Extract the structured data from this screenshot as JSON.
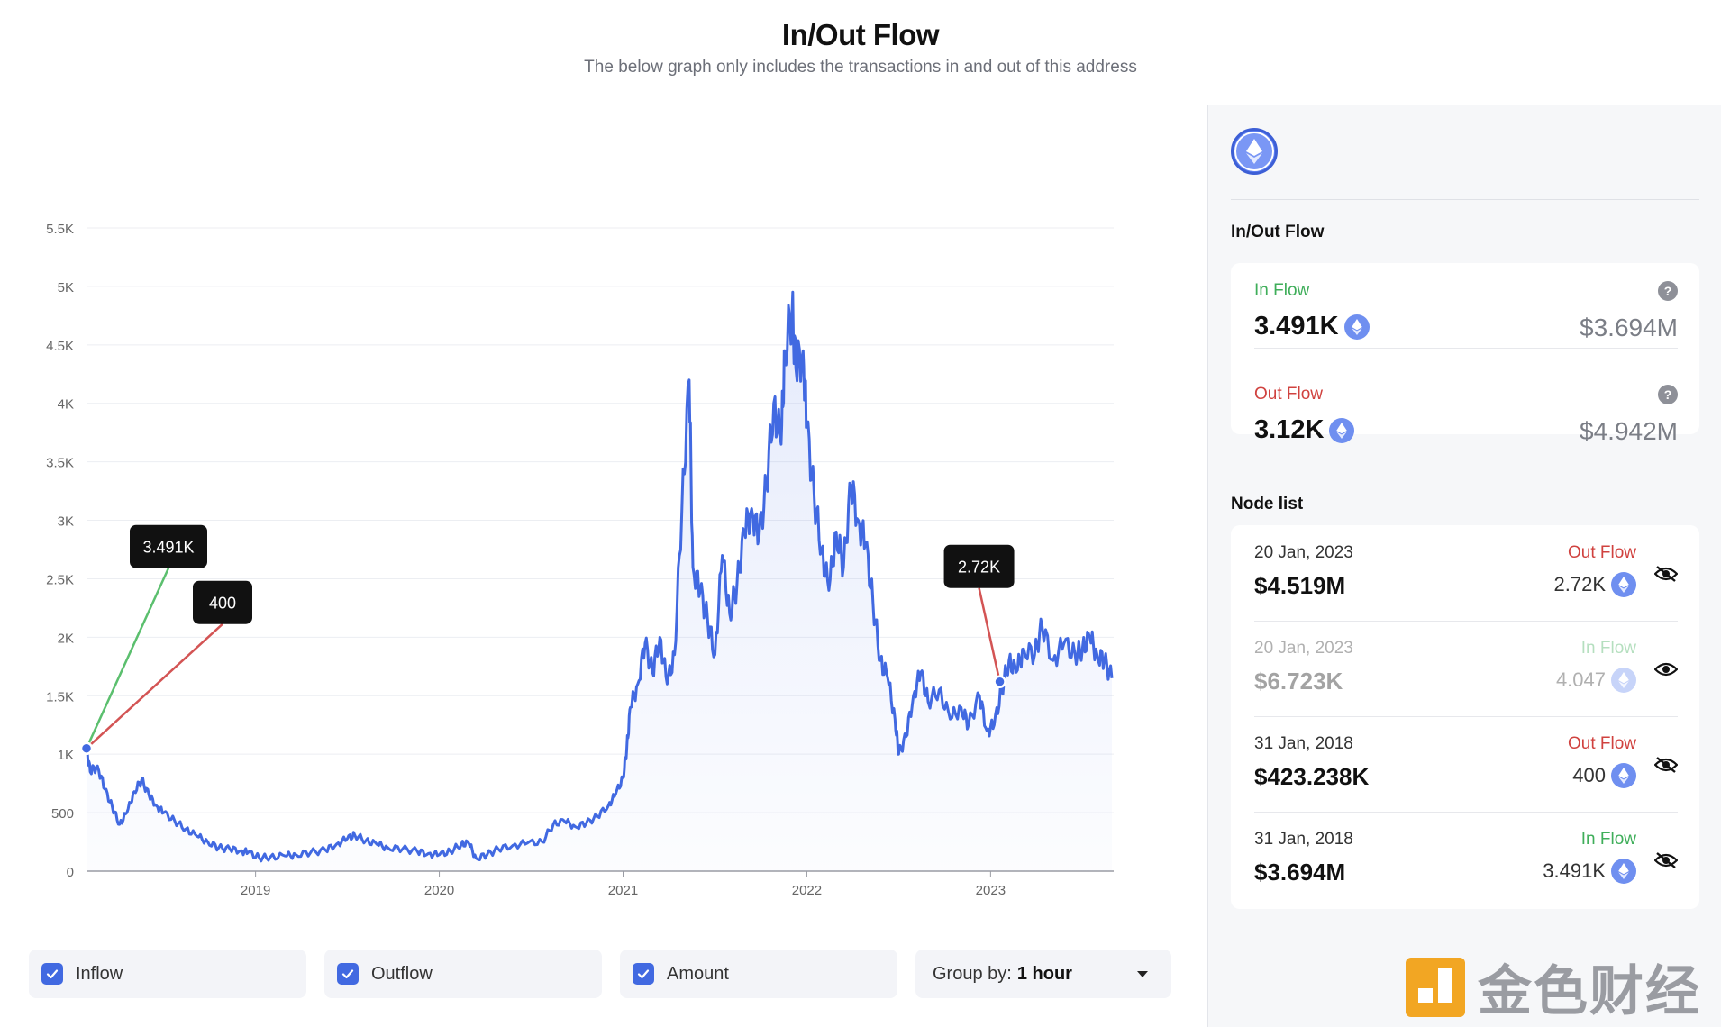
{
  "header": {
    "title": "In/Out Flow",
    "subtitle": "The below graph only includes the transactions in and out of this address"
  },
  "chart_data": {
    "type": "area",
    "ylim": [
      0,
      5500
    ],
    "yticks": [
      "0",
      "500",
      "1K",
      "1.5K",
      "2K",
      "2.5K",
      "3K",
      "3.5K",
      "4K",
      "4.5K",
      "5K",
      "5.5K"
    ],
    "xlim": [
      2018.08,
      2023.67
    ],
    "xticks": [
      {
        "label": "2019",
        "x": 2019
      },
      {
        "label": "2020",
        "x": 2020
      },
      {
        "label": "2021",
        "x": 2021
      },
      {
        "label": "2022",
        "x": 2022
      },
      {
        "label": "2023",
        "x": 2023
      }
    ],
    "series": [
      {
        "color": "#4169e1",
        "points": [
          [
            2018.08,
            1050
          ],
          [
            2018.1,
            850
          ],
          [
            2018.14,
            900
          ],
          [
            2018.18,
            700
          ],
          [
            2018.22,
            550
          ],
          [
            2018.26,
            400
          ],
          [
            2018.3,
            500
          ],
          [
            2018.34,
            680
          ],
          [
            2018.38,
            780
          ],
          [
            2018.42,
            650
          ],
          [
            2018.46,
            560
          ],
          [
            2018.5,
            500
          ],
          [
            2018.56,
            430
          ],
          [
            2018.62,
            360
          ],
          [
            2018.68,
            300
          ],
          [
            2018.74,
            250
          ],
          [
            2018.8,
            200
          ],
          [
            2018.86,
            190
          ],
          [
            2018.92,
            175
          ],
          [
            2018.96,
            160
          ],
          [
            2019.02,
            115
          ],
          [
            2019.08,
            120
          ],
          [
            2019.16,
            130
          ],
          [
            2019.22,
            140
          ],
          [
            2019.3,
            160
          ],
          [
            2019.38,
            180
          ],
          [
            2019.44,
            230
          ],
          [
            2019.5,
            280
          ],
          [
            2019.54,
            310
          ],
          [
            2019.6,
            260
          ],
          [
            2019.66,
            230
          ],
          [
            2019.72,
            200
          ],
          [
            2019.8,
            190
          ],
          [
            2019.88,
            170
          ],
          [
            2019.94,
            150
          ],
          [
            2020.0,
            140
          ],
          [
            2020.06,
            170
          ],
          [
            2020.12,
            230
          ],
          [
            2020.16,
            240
          ],
          [
            2020.2,
            110
          ],
          [
            2020.26,
            140
          ],
          [
            2020.32,
            190
          ],
          [
            2020.4,
            220
          ],
          [
            2020.48,
            240
          ],
          [
            2020.56,
            250
          ],
          [
            2020.62,
            400
          ],
          [
            2020.68,
            430
          ],
          [
            2020.74,
            380
          ],
          [
            2020.8,
            410
          ],
          [
            2020.86,
            470
          ],
          [
            2020.92,
            560
          ],
          [
            2020.96,
            660
          ],
          [
            2021.0,
            800
          ],
          [
            2021.02,
            1050
          ],
          [
            2021.04,
            1400
          ],
          [
            2021.08,
            1600
          ],
          [
            2021.12,
            1950
          ],
          [
            2021.16,
            1700
          ],
          [
            2021.2,
            2000
          ],
          [
            2021.24,
            1600
          ],
          [
            2021.28,
            1850
          ],
          [
            2021.32,
            3100
          ],
          [
            2021.36,
            4200
          ],
          [
            2021.38,
            2600
          ],
          [
            2021.42,
            2400
          ],
          [
            2021.46,
            2150
          ],
          [
            2021.5,
            1850
          ],
          [
            2021.54,
            2700
          ],
          [
            2021.58,
            2200
          ],
          [
            2021.62,
            2450
          ],
          [
            2021.66,
            2900
          ],
          [
            2021.7,
            3100
          ],
          [
            2021.74,
            2850
          ],
          [
            2021.78,
            3300
          ],
          [
            2021.82,
            4000
          ],
          [
            2021.86,
            3650
          ],
          [
            2021.88,
            4450
          ],
          [
            2021.92,
            4800
          ],
          [
            2021.94,
            4300
          ],
          [
            2021.98,
            4450
          ],
          [
            2022.0,
            3800
          ],
          [
            2022.04,
            3200
          ],
          [
            2022.08,
            2750
          ],
          [
            2022.12,
            2400
          ],
          [
            2022.16,
            2900
          ],
          [
            2022.2,
            2600
          ],
          [
            2022.24,
            3300
          ],
          [
            2022.28,
            3000
          ],
          [
            2022.32,
            2800
          ],
          [
            2022.36,
            2300
          ],
          [
            2022.4,
            1800
          ],
          [
            2022.44,
            1650
          ],
          [
            2022.48,
            1300
          ],
          [
            2022.5,
            1000
          ],
          [
            2022.54,
            1150
          ],
          [
            2022.58,
            1500
          ],
          [
            2022.62,
            1700
          ],
          [
            2022.66,
            1450
          ],
          [
            2022.72,
            1550
          ],
          [
            2022.78,
            1300
          ],
          [
            2022.84,
            1400
          ],
          [
            2022.88,
            1250
          ],
          [
            2022.94,
            1500
          ],
          [
            2022.98,
            1200
          ],
          [
            2023.02,
            1250
          ],
          [
            2023.06,
            1550
          ],
          [
            2023.1,
            1800
          ],
          [
            2023.14,
            1700
          ],
          [
            2023.18,
            1900
          ],
          [
            2023.24,
            1850
          ],
          [
            2023.28,
            2100
          ],
          [
            2023.34,
            1800
          ],
          [
            2023.4,
            1950
          ],
          [
            2023.46,
            1850
          ],
          [
            2023.5,
            1900
          ],
          [
            2023.54,
            2000
          ],
          [
            2023.58,
            1850
          ],
          [
            2023.62,
            1800
          ],
          [
            2023.66,
            1650
          ]
        ]
      }
    ],
    "annotations": [
      {
        "label": "3.491K",
        "x": 2018.08,
        "y": 1050,
        "color": "#5bbf6e"
      },
      {
        "label": "400",
        "x": 2018.08,
        "y": 1050,
        "color": "#d35454"
      },
      {
        "label": "2.72K",
        "x": 2023.05,
        "y": 1620,
        "color": "#d35454"
      }
    ]
  },
  "legend": {
    "inflow_label": "Inflow",
    "outflow_label": "Outflow",
    "amount_label": "Amount",
    "groupby_prefix": "Group by:",
    "groupby_value": "1 hour"
  },
  "sidebar": {
    "section_title": "In/Out Flow",
    "in_flow": {
      "label": "In Flow",
      "amount": "3.491K",
      "usd": "$3.694M",
      "help": "?"
    },
    "out_flow": {
      "label": "Out Flow",
      "amount": "3.12K",
      "usd": "$4.942M",
      "help": "?"
    },
    "node_list_title": "Node list",
    "nodes": [
      {
        "date": "20 Jan, 2023",
        "usd": "$4.519M",
        "type": "Out Flow",
        "amount": "2.72K",
        "hidden": true
      },
      {
        "date": "20 Jan, 2023",
        "usd": "$6.723K",
        "type": "In Flow",
        "amount": "4.047",
        "hidden": false
      },
      {
        "date": "31 Jan, 2018",
        "usd": "$423.238K",
        "type": "Out Flow",
        "amount": "400",
        "hidden": true
      },
      {
        "date": "31 Jan, 2018",
        "usd": "$3.694M",
        "type": "In Flow",
        "amount": "3.491K",
        "hidden": true
      }
    ]
  },
  "colors": {
    "accent": "#4169e1",
    "in_flow": "#3fae5a",
    "out_flow": "#d0423f"
  },
  "watermark": {
    "text": "金色财经"
  }
}
